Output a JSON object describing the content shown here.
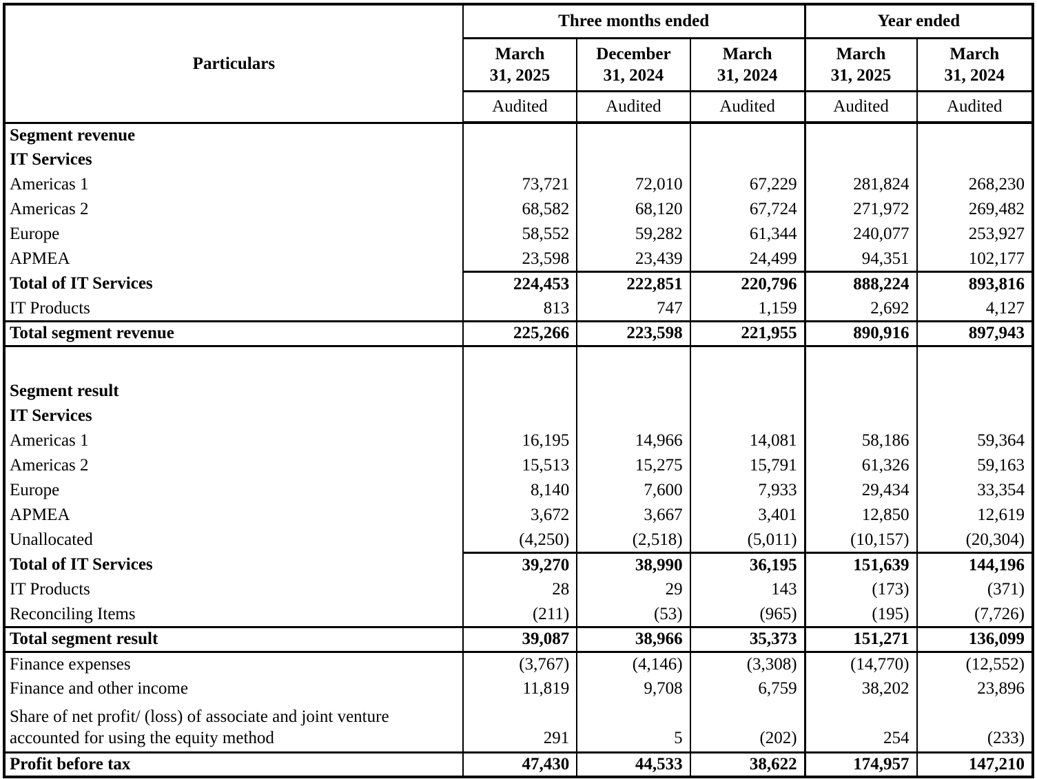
{
  "table": {
    "header": {
      "particulars": "Particulars",
      "groups": [
        {
          "label": "Three months ended",
          "span": 3
        },
        {
          "label": "Year ended",
          "span": 2
        }
      ],
      "columns": [
        {
          "line1": "March",
          "line2": "31, 2025"
        },
        {
          "line1": "December",
          "line2": "31, 2024"
        },
        {
          "line1": "March",
          "line2": "31, 2024"
        },
        {
          "line1": "March",
          "line2": "31, 2025"
        },
        {
          "line1": "March",
          "line2": "31, 2024"
        }
      ],
      "audited": [
        "Audited",
        "Audited",
        "Audited",
        "Audited",
        "Audited"
      ]
    },
    "rows": [
      {
        "label": "Segment revenue",
        "bold": true,
        "indent": 0,
        "values": [
          "",
          "",
          "",
          "",
          ""
        ]
      },
      {
        "label": "IT Services",
        "bold": true,
        "indent": 0,
        "values": [
          "",
          "",
          "",
          "",
          ""
        ]
      },
      {
        "label": "Americas 1",
        "indent": 2,
        "values": [
          "73,721",
          "72,010",
          "67,229",
          "281,824",
          "268,230"
        ]
      },
      {
        "label": "Americas 2",
        "indent": 2,
        "values": [
          "68,582",
          "68,120",
          "67,724",
          "271,972",
          "269,482"
        ]
      },
      {
        "label": "Europe",
        "indent": 2,
        "values": [
          "58,552",
          "59,282",
          "61,344",
          "240,077",
          "253,927"
        ]
      },
      {
        "label": "APMEA",
        "indent": 2,
        "values": [
          "23,598",
          "23,439",
          "24,499",
          "94,351",
          "102,177"
        ]
      },
      {
        "label": "Total of IT Services",
        "bold": true,
        "values_bold": true,
        "top_border": "numeric",
        "indent": 0,
        "values": [
          "224,453",
          "222,851",
          "220,796",
          "888,224",
          "893,816"
        ]
      },
      {
        "label": "IT Products",
        "indent": 2,
        "values": [
          "813",
          "747",
          "1,159",
          "2,692",
          "4,127"
        ]
      },
      {
        "label": "Total segment revenue",
        "bold": true,
        "values_bold": true,
        "top_border": "full",
        "bottom_border": "full",
        "indent": 0,
        "values": [
          "225,266",
          "223,598",
          "221,955",
          "890,916",
          "897,943"
        ]
      },
      {
        "label": "",
        "blank": true,
        "indent": 0,
        "values": [
          "",
          "",
          "",
          "",
          ""
        ]
      },
      {
        "label": "Segment result",
        "bold": true,
        "indent": 0,
        "values": [
          "",
          "",
          "",
          "",
          ""
        ]
      },
      {
        "label": "IT Services",
        "bold": true,
        "indent": 0,
        "values": [
          "",
          "",
          "",
          "",
          ""
        ]
      },
      {
        "label": "Americas 1",
        "indent": 2,
        "values": [
          "16,195",
          "14,966",
          "14,081",
          "58,186",
          "59,364"
        ]
      },
      {
        "label": "Americas 2",
        "indent": 2,
        "values": [
          "15,513",
          "15,275",
          "15,791",
          "61,326",
          "59,163"
        ]
      },
      {
        "label": "Europe",
        "indent": 2,
        "values": [
          "8,140",
          "7,600",
          "7,933",
          "29,434",
          "33,354"
        ]
      },
      {
        "label": "APMEA",
        "indent": 2,
        "values": [
          "3,672",
          "3,667",
          "3,401",
          "12,850",
          "12,619"
        ]
      },
      {
        "label": "Unallocated",
        "indent": 1,
        "values": [
          "(4,250)",
          "(2,518)",
          "(5,011)",
          "(10,157)",
          "(20,304)"
        ]
      },
      {
        "label": "Total of IT Services",
        "bold": true,
        "values_bold": true,
        "top_border": "numeric",
        "indent": 0,
        "values": [
          "39,270",
          "38,990",
          "36,195",
          "151,639",
          "144,196"
        ]
      },
      {
        "label": "IT Products",
        "indent": 0,
        "values": [
          "28",
          "29",
          "143",
          "(173)",
          "(371)"
        ]
      },
      {
        "label": "Reconciling Items",
        "indent": 0,
        "values": [
          "(211)",
          "(53)",
          "(965)",
          "(195)",
          "(7,726)"
        ]
      },
      {
        "label": "Total segment result",
        "bold": true,
        "values_bold": true,
        "top_border": "full",
        "bottom_border": "full",
        "indent": 0,
        "values": [
          "39,087",
          "38,966",
          "35,373",
          "151,271",
          "136,099"
        ]
      },
      {
        "label": "Finance expenses",
        "indent": 0,
        "values": [
          "(3,767)",
          "(4,146)",
          "(3,308)",
          "(14,770)",
          "(12,552)"
        ]
      },
      {
        "label": "Finance and other income",
        "indent": 0,
        "values": [
          "11,819",
          "9,708",
          "6,759",
          "38,202",
          "23,896"
        ]
      },
      {
        "label": "Share of net profit/ (loss) of associate and joint venture accounted for using the equity method",
        "indent": 0,
        "two_line": true,
        "values": [
          "291",
          "5",
          "(202)",
          "254",
          "(233)"
        ]
      },
      {
        "label": "Profit before tax",
        "bold": true,
        "values_bold": true,
        "top_border": "full",
        "indent": 0,
        "values": [
          "47,430",
          "44,533",
          "38,622",
          "174,957",
          "147,210"
        ]
      }
    ]
  }
}
